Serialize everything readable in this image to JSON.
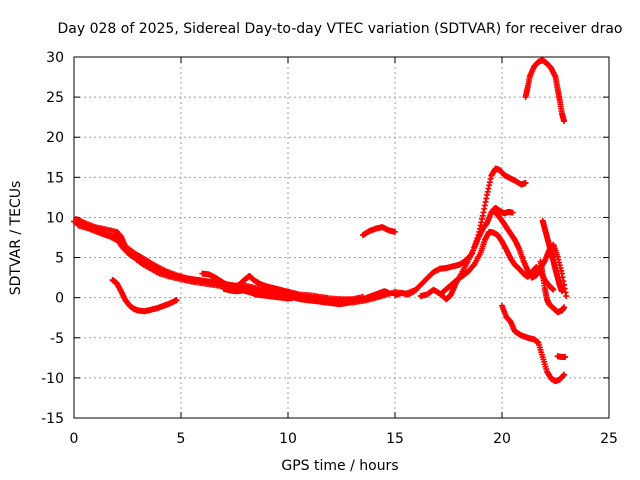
{
  "chart_data": {
    "type": "scatter",
    "title": "Day 028 of 2025, Sidereal Day-to-day VTEC variation (SDTVAR) for receiver drao",
    "xlabel": "GPS time / hours",
    "ylabel": "SDTVAR / TECUs",
    "xlim": [
      0,
      25
    ],
    "ylim": [
      -15,
      30
    ],
    "x_ticks": [
      0,
      5,
      10,
      15,
      20,
      25
    ],
    "y_ticks": [
      -15,
      -10,
      -5,
      0,
      5,
      10,
      15,
      20,
      25,
      30
    ],
    "x_tick_labels": [
      "0",
      "5",
      "10",
      "15",
      "20",
      "25"
    ],
    "y_tick_labels": [
      "-15",
      "-10",
      "-5",
      "0",
      "5",
      "10",
      "15",
      "20",
      "25",
      "30"
    ],
    "grid": true,
    "marker": "+",
    "marker_color": "#ff0000",
    "series": [
      {
        "name": "track-a",
        "points": [
          [
            0.0,
            9.5
          ],
          [
            0.3,
            9.2
          ],
          [
            0.6,
            8.8
          ],
          [
            1.0,
            8.3
          ],
          [
            1.4,
            7.9
          ],
          [
            1.8,
            7.6
          ],
          [
            2.0,
            7.8
          ],
          [
            2.2,
            6.5
          ],
          [
            2.5,
            5.6
          ],
          [
            2.8,
            5.0
          ],
          [
            3.2,
            4.2
          ],
          [
            3.6,
            3.6
          ],
          [
            4.0,
            3.0
          ],
          [
            4.5,
            2.6
          ],
          [
            5.0,
            2.3
          ],
          [
            5.5,
            2.0
          ],
          [
            6.0,
            1.8
          ],
          [
            6.5,
            1.6
          ],
          [
            7.0,
            1.4
          ],
          [
            7.5,
            1.2
          ],
          [
            8.0,
            1.0
          ],
          [
            8.5,
            0.8
          ],
          [
            9.0,
            0.6
          ],
          [
            9.5,
            0.4
          ],
          [
            10.0,
            0.3
          ],
          [
            10.5,
            0.2
          ],
          [
            11.0,
            0.0
          ],
          [
            11.5,
            -0.2
          ],
          [
            12.0,
            -0.4
          ],
          [
            12.5,
            -0.5
          ],
          [
            13.0,
            -0.6
          ],
          [
            13.5,
            -0.4
          ],
          [
            14.0,
            -0.1
          ],
          [
            14.5,
            0.3
          ],
          [
            15.0,
            0.7
          ],
          [
            15.5,
            0.5
          ],
          [
            16.0,
            1.0
          ]
        ]
      },
      {
        "name": "track-b",
        "points": [
          [
            0.1,
            9.8
          ],
          [
            0.5,
            9.3
          ],
          [
            1.0,
            8.8
          ],
          [
            1.5,
            8.5
          ],
          [
            2.0,
            8.2
          ],
          [
            2.2,
            7.6
          ],
          [
            2.4,
            6.4
          ],
          [
            2.8,
            5.6
          ],
          [
            3.3,
            4.8
          ],
          [
            3.8,
            4.0
          ],
          [
            4.3,
            3.3
          ],
          [
            4.8,
            2.8
          ],
          [
            5.3,
            2.4
          ],
          [
            5.8,
            2.2
          ],
          [
            6.3,
            2.0
          ],
          [
            6.8,
            1.8
          ],
          [
            7.3,
            1.6
          ],
          [
            7.8,
            1.3
          ],
          [
            8.3,
            1.0
          ],
          [
            8.8,
            0.8
          ],
          [
            9.3,
            0.6
          ],
          [
            9.8,
            0.4
          ],
          [
            10.3,
            0.3
          ],
          [
            10.8,
            0.1
          ],
          [
            11.3,
            -0.1
          ],
          [
            11.8,
            -0.3
          ],
          [
            12.3,
            -0.4
          ],
          [
            12.8,
            -0.3
          ],
          [
            13.3,
            -0.2
          ],
          [
            13.8,
            0.0
          ],
          [
            14.3,
            0.3
          ]
        ]
      },
      {
        "name": "track-c",
        "points": [
          [
            0.2,
            9.0
          ],
          [
            0.7,
            8.6
          ],
          [
            1.2,
            8.1
          ],
          [
            1.7,
            7.6
          ],
          [
            2.1,
            7.0
          ],
          [
            2.5,
            6.0
          ],
          [
            3.0,
            5.0
          ],
          [
            3.5,
            4.2
          ],
          [
            4.0,
            3.4
          ],
          [
            4.5,
            2.8
          ],
          [
            5.0,
            2.5
          ],
          [
            5.5,
            2.3
          ],
          [
            6.0,
            2.1
          ],
          [
            6.5,
            1.9
          ],
          [
            7.0,
            1.7
          ],
          [
            7.5,
            1.5
          ],
          [
            8.0,
            1.5
          ],
          [
            8.5,
            1.2
          ],
          [
            9.0,
            1.0
          ],
          [
            9.5,
            0.8
          ],
          [
            10.0,
            0.6
          ],
          [
            10.5,
            0.4
          ],
          [
            11.0,
            0.3
          ],
          [
            11.5,
            0.1
          ],
          [
            12.0,
            -0.1
          ],
          [
            12.5,
            -0.2
          ],
          [
            13.0,
            -0.2
          ],
          [
            13.5,
            0.1
          ]
        ]
      },
      {
        "name": "track-d",
        "points": [
          [
            6.0,
            3.0
          ],
          [
            6.3,
            2.9
          ],
          [
            6.6,
            2.5
          ],
          [
            6.9,
            2.0
          ],
          [
            7.2,
            1.5
          ],
          [
            7.5,
            1.2
          ],
          [
            7.8,
            1.8
          ],
          [
            8.0,
            2.3
          ],
          [
            8.2,
            2.7
          ],
          [
            8.4,
            2.2
          ],
          [
            8.7,
            1.7
          ],
          [
            9.0,
            1.4
          ],
          [
            9.3,
            1.2
          ],
          [
            9.6,
            1.0
          ],
          [
            9.9,
            0.8
          ],
          [
            10.2,
            0.6
          ],
          [
            10.5,
            0.4
          ]
        ]
      },
      {
        "name": "track-e",
        "points": [
          [
            7.0,
            1.1
          ],
          [
            7.3,
            0.9
          ],
          [
            7.6,
            0.8
          ],
          [
            7.9,
            0.9
          ],
          [
            8.2,
            0.7
          ],
          [
            8.5,
            0.4
          ],
          [
            8.8,
            0.3
          ],
          [
            9.1,
            0.2
          ],
          [
            9.4,
            0.1
          ],
          [
            9.7,
            0.0
          ],
          [
            10.0,
            -0.1
          ],
          [
            10.3,
            0.0
          ],
          [
            10.6,
            -0.2
          ],
          [
            10.9,
            -0.3
          ],
          [
            11.2,
            -0.4
          ],
          [
            11.5,
            -0.5
          ],
          [
            11.8,
            -0.6
          ],
          [
            12.1,
            -0.7
          ],
          [
            12.4,
            -0.8
          ],
          [
            12.7,
            -0.7
          ],
          [
            13.0,
            -0.5
          ],
          [
            13.3,
            -0.3
          ],
          [
            13.6,
            -0.1
          ],
          [
            13.9,
            0.2
          ],
          [
            14.2,
            0.5
          ],
          [
            14.5,
            0.8
          ],
          [
            14.7,
            0.6
          ]
        ]
      },
      {
        "name": "track-f",
        "points": [
          [
            1.8,
            2.2
          ],
          [
            2.0,
            1.8
          ],
          [
            2.2,
            0.8
          ],
          [
            2.4,
            -0.3
          ],
          [
            2.6,
            -1.0
          ],
          [
            2.8,
            -1.4
          ],
          [
            3.0,
            -1.6
          ],
          [
            3.3,
            -1.7
          ],
          [
            3.6,
            -1.5
          ],
          [
            3.9,
            -1.3
          ],
          [
            4.2,
            -1.0
          ],
          [
            4.5,
            -0.7
          ],
          [
            4.8,
            -0.3
          ]
        ]
      },
      {
        "name": "track-g",
        "points": [
          [
            13.5,
            7.8
          ],
          [
            13.8,
            8.3
          ],
          [
            14.1,
            8.6
          ],
          [
            14.4,
            8.8
          ],
          [
            14.7,
            8.4
          ],
          [
            15.0,
            8.2
          ]
        ]
      },
      {
        "name": "track-h",
        "points": [
          [
            15.0,
            0.3
          ],
          [
            15.3,
            0.6
          ],
          [
            15.6,
            0.4
          ],
          [
            15.9,
            0.8
          ],
          [
            16.2,
            1.6
          ],
          [
            16.5,
            2.4
          ],
          [
            16.8,
            3.2
          ],
          [
            17.1,
            3.6
          ],
          [
            17.4,
            3.7
          ],
          [
            17.7,
            3.9
          ],
          [
            18.0,
            4.1
          ],
          [
            18.3,
            4.6
          ],
          [
            18.6,
            5.5
          ],
          [
            18.9,
            7.8
          ],
          [
            19.1,
            10.2
          ],
          [
            19.3,
            12.8
          ],
          [
            19.5,
            15.2
          ],
          [
            19.7,
            16.1
          ],
          [
            19.9,
            15.9
          ],
          [
            20.1,
            15.3
          ],
          [
            20.3,
            15.0
          ],
          [
            20.6,
            14.6
          ],
          [
            20.9,
            14.1
          ],
          [
            21.1,
            14.3
          ]
        ]
      },
      {
        "name": "track-i",
        "points": [
          [
            16.2,
            0.2
          ],
          [
            16.5,
            0.4
          ],
          [
            16.8,
            1.0
          ],
          [
            17.1,
            0.5
          ],
          [
            17.4,
            -0.2
          ],
          [
            17.6,
            0.3
          ],
          [
            17.8,
            1.5
          ],
          [
            18.1,
            3.0
          ],
          [
            18.4,
            4.5
          ],
          [
            18.7,
            6.2
          ],
          [
            18.9,
            7.5
          ],
          [
            19.1,
            8.6
          ],
          [
            19.3,
            9.3
          ],
          [
            19.5,
            10.6
          ],
          [
            19.7,
            11.2
          ],
          [
            19.9,
            10.8
          ],
          [
            20.1,
            10.5
          ],
          [
            20.3,
            10.7
          ],
          [
            20.5,
            10.6
          ]
        ]
      },
      {
        "name": "track-j",
        "points": [
          [
            17.2,
            0.6
          ],
          [
            17.5,
            1.3
          ],
          [
            17.8,
            2.0
          ],
          [
            18.1,
            2.6
          ],
          [
            18.4,
            3.2
          ],
          [
            18.7,
            4.1
          ],
          [
            19.0,
            5.6
          ],
          [
            19.2,
            7.2
          ],
          [
            19.4,
            8.2
          ],
          [
            19.6,
            8.1
          ],
          [
            19.8,
            7.8
          ],
          [
            20.0,
            7.0
          ],
          [
            20.2,
            6.0
          ],
          [
            20.4,
            4.9
          ],
          [
            20.6,
            4.1
          ],
          [
            20.8,
            3.6
          ],
          [
            21.0,
            3.0
          ],
          [
            21.2,
            2.6
          ],
          [
            21.4,
            3.2
          ],
          [
            21.6,
            3.8
          ],
          [
            21.8,
            3.3
          ],
          [
            22.0,
            2.2
          ],
          [
            22.2,
            1.5
          ],
          [
            22.4,
            1.0
          ]
        ]
      },
      {
        "name": "track-k",
        "points": [
          [
            19.6,
            11.0
          ],
          [
            19.8,
            10.3
          ],
          [
            20.0,
            9.6
          ],
          [
            20.2,
            8.8
          ],
          [
            20.4,
            8.0
          ],
          [
            20.6,
            7.2
          ],
          [
            20.8,
            6.1
          ],
          [
            21.0,
            4.6
          ],
          [
            21.2,
            3.4
          ],
          [
            21.4,
            2.5
          ],
          [
            21.6,
            2.8
          ],
          [
            21.8,
            3.7
          ],
          [
            22.0,
            4.6
          ],
          [
            22.2,
            5.9
          ],
          [
            22.4,
            6.6
          ],
          [
            22.6,
            5.1
          ],
          [
            22.8,
            3.0
          ],
          [
            23.0,
            0.2
          ]
        ]
      },
      {
        "name": "track-l",
        "points": [
          [
            21.9,
            9.6
          ],
          [
            22.0,
            8.6
          ],
          [
            22.1,
            7.6
          ],
          [
            22.2,
            6.6
          ],
          [
            22.3,
            5.6
          ],
          [
            22.4,
            4.6
          ],
          [
            22.5,
            3.5
          ],
          [
            22.6,
            2.5
          ],
          [
            22.7,
            1.5
          ],
          [
            22.8,
            0.8
          ]
        ]
      },
      {
        "name": "track-m",
        "points": [
          [
            21.8,
            4.5
          ],
          [
            21.9,
            3.0
          ],
          [
            22.0,
            1.2
          ],
          [
            22.1,
            -0.2
          ],
          [
            22.2,
            -0.8
          ],
          [
            22.4,
            -1.3
          ],
          [
            22.6,
            -1.8
          ],
          [
            22.8,
            -1.6
          ],
          [
            22.9,
            -1.2
          ]
        ]
      },
      {
        "name": "track-n",
        "points": [
          [
            20.0,
            -1.0
          ],
          [
            20.2,
            -2.4
          ],
          [
            20.4,
            -3.0
          ],
          [
            20.6,
            -4.2
          ],
          [
            20.9,
            -4.7
          ],
          [
            21.2,
            -5.0
          ],
          [
            21.5,
            -5.2
          ],
          [
            21.7,
            -5.6
          ],
          [
            21.9,
            -7.4
          ],
          [
            22.1,
            -9.2
          ],
          [
            22.3,
            -10.1
          ],
          [
            22.5,
            -10.4
          ],
          [
            22.7,
            -10.2
          ],
          [
            22.9,
            -9.6
          ]
        ]
      },
      {
        "name": "track-o",
        "points": [
          [
            22.6,
            -7.3
          ],
          [
            22.8,
            -7.4
          ],
          [
            22.95,
            -7.4
          ]
        ]
      },
      {
        "name": "track-p",
        "points": [
          [
            21.1,
            25.0
          ],
          [
            21.2,
            26.2
          ],
          [
            21.3,
            27.6
          ],
          [
            21.5,
            28.8
          ],
          [
            21.7,
            29.4
          ],
          [
            21.9,
            29.6
          ],
          [
            22.1,
            29.2
          ],
          [
            22.3,
            28.6
          ],
          [
            22.5,
            27.5
          ],
          [
            22.6,
            26.0
          ],
          [
            22.7,
            24.6
          ],
          [
            22.8,
            23.0
          ],
          [
            22.9,
            22.0
          ]
        ]
      }
    ]
  }
}
